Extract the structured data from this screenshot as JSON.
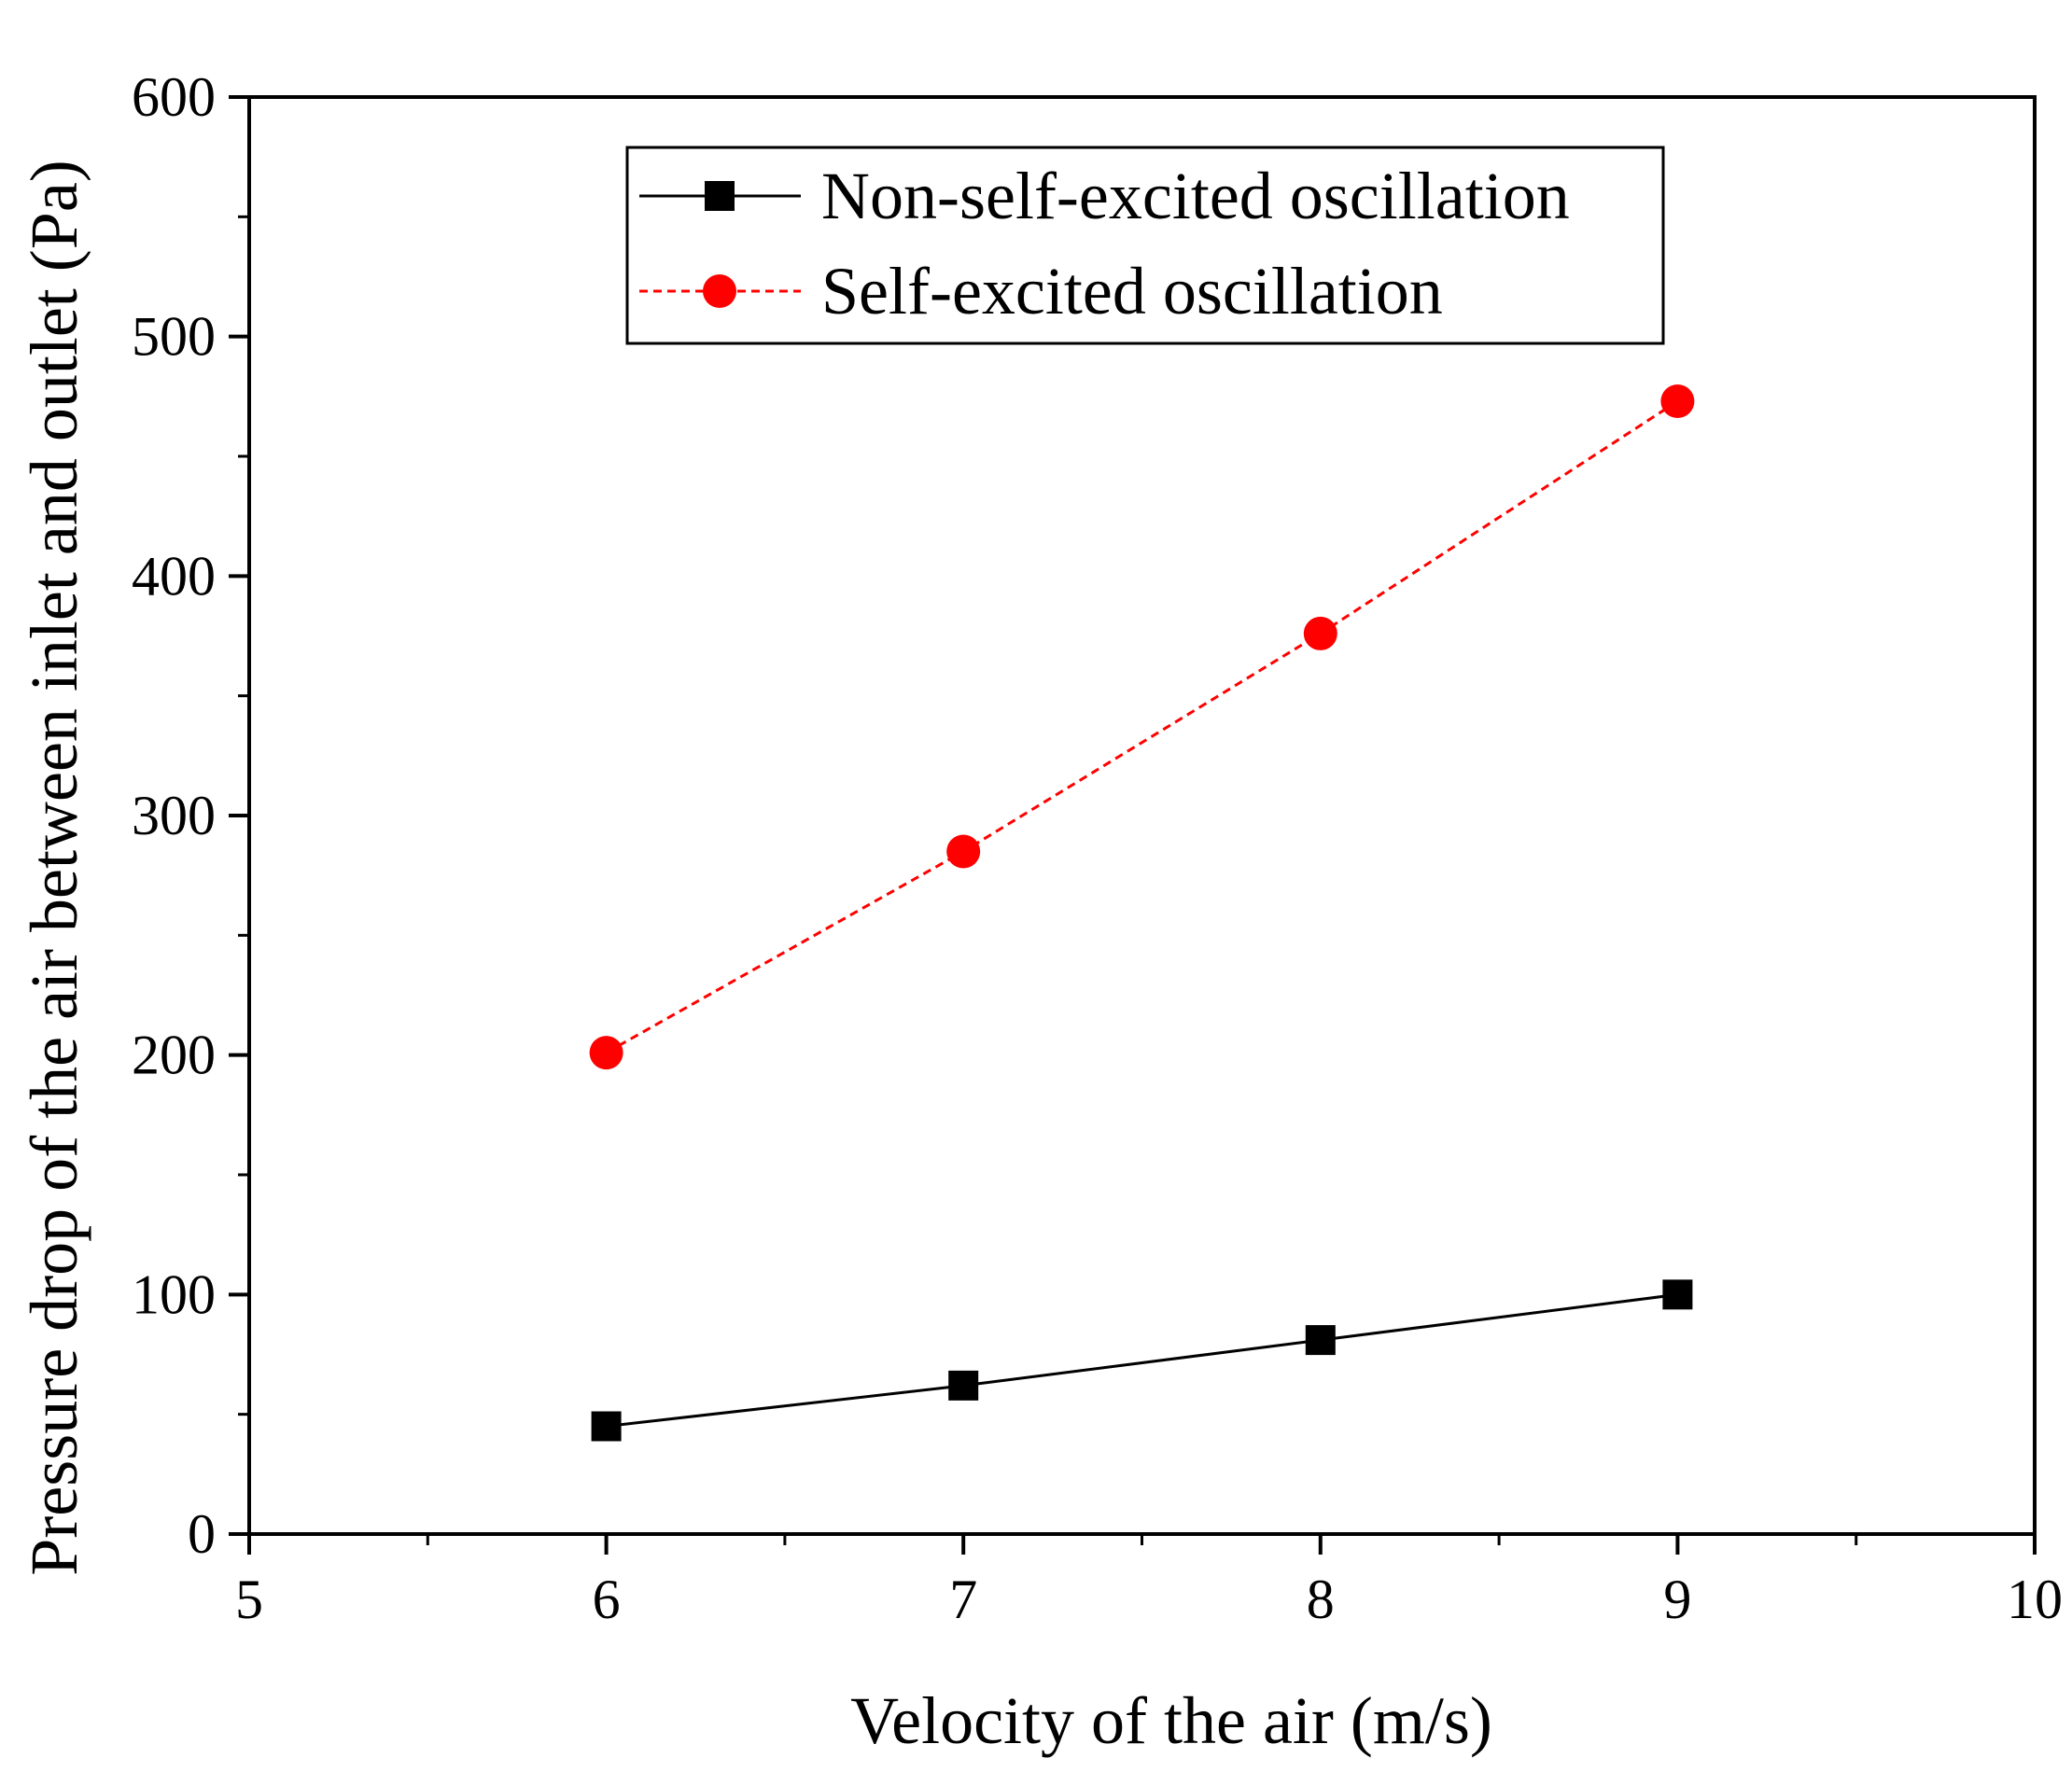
{
  "chart_data": {
    "type": "line",
    "title": "",
    "xlabel": "Velocity of the air (m/s)",
    "ylabel": "Pressure drop of  the air between inlet and outlet (Pa)",
    "xlim": [
      5,
      10
    ],
    "ylim": [
      0,
      600
    ],
    "xticks": [
      5,
      6,
      7,
      8,
      9,
      10
    ],
    "xtick_labels": [
      "5",
      "6",
      "7",
      "8",
      "9",
      "10"
    ],
    "yticks": [
      0,
      100,
      200,
      300,
      400,
      500,
      600
    ],
    "ytick_labels": [
      "0",
      "100",
      "200",
      "300",
      "400",
      "500",
      "600"
    ],
    "grid": false,
    "legend_position": "top-center",
    "series": [
      {
        "name": "Non-self-excited oscillation",
        "marker": "square",
        "line_style": "solid",
        "color": "#000000",
        "x": [
          6,
          7,
          8,
          9
        ],
        "y": [
          45,
          62,
          81,
          100
        ]
      },
      {
        "name": "Self-excited oscillation",
        "marker": "circle",
        "line_style": "dashed",
        "color": "#ff0000",
        "x": [
          6,
          7,
          8,
          9
        ],
        "y": [
          201,
          285,
          376,
          473
        ]
      }
    ]
  }
}
